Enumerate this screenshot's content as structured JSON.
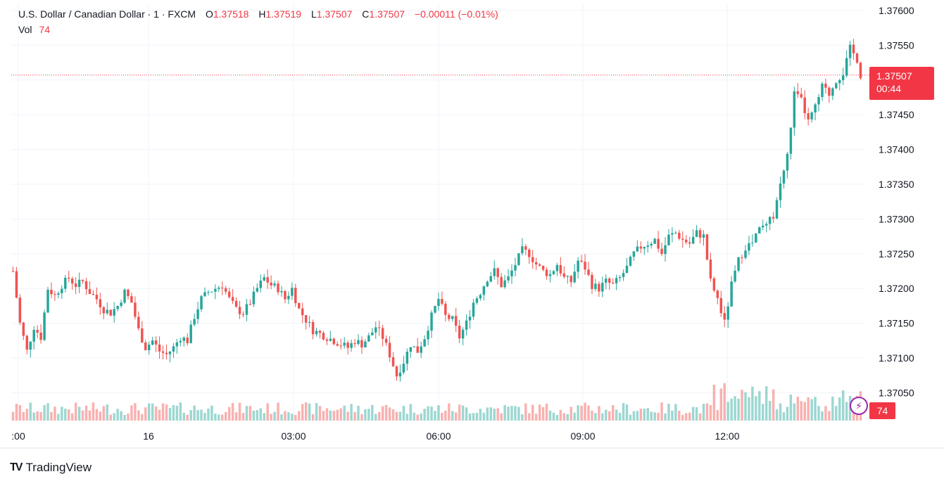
{
  "legend": {
    "symbol": "U.S. Dollar / Canadian Dollar · 1 · FXCM",
    "open_label": "O",
    "open": "1.37518",
    "high_label": "H",
    "high": "1.37519",
    "low_label": "L",
    "low": "1.37507",
    "close_label": "C",
    "close": "1.37507",
    "change": "−0.00011 (−0.01%)",
    "vol_label": "Vol",
    "vol": "74"
  },
  "price_tag": {
    "price": "1.37507",
    "countdown": "00:44"
  },
  "vol_tag": "74",
  "brand": {
    "name": "TradingView"
  },
  "colors": {
    "up": "#26a69a",
    "down": "#ef5350",
    "tag": "#f23645",
    "grid": "#f0f3fa",
    "bolt": "#9c27b0"
  },
  "chart_data": {
    "type": "candlestick",
    "y_ticks": [
      "1.37600",
      "1.37550",
      "1.37500",
      "1.37450",
      "1.37400",
      "1.37350",
      "1.37300",
      "1.37250",
      "1.37200",
      "1.37150",
      "1.37100",
      "1.37050"
    ],
    "ylim": [
      1.3701,
      1.3761
    ],
    "x_ticks": [
      ":00",
      "16",
      "03:00",
      "06:00",
      "09:00",
      "12:00"
    ],
    "current_price": 1.37507,
    "close_path": [
      [
        0,
        1.37225
      ],
      [
        2,
        1.3715
      ],
      [
        4,
        1.3711
      ],
      [
        6,
        1.37145
      ],
      [
        8,
        1.3713
      ],
      [
        10,
        1.372
      ],
      [
        12,
        1.3719
      ],
      [
        14,
        1.37205
      ],
      [
        16,
        1.37215
      ],
      [
        18,
        1.37205
      ],
      [
        20,
        1.3721
      ],
      [
        22,
        1.37195
      ],
      [
        24,
        1.37185
      ],
      [
        26,
        1.3717
      ],
      [
        28,
        1.37165
      ],
      [
        30,
        1.37175
      ],
      [
        32,
        1.37195
      ],
      [
        34,
        1.3718
      ],
      [
        36,
        1.3714
      ],
      [
        38,
        1.37115
      ],
      [
        40,
        1.37125
      ],
      [
        42,
        1.3711
      ],
      [
        44,
        1.37105
      ],
      [
        46,
        1.37115
      ],
      [
        48,
        1.3713
      ],
      [
        50,
        1.37125
      ],
      [
        52,
        1.3716
      ],
      [
        54,
        1.37185
      ],
      [
        56,
        1.37195
      ],
      [
        58,
        1.372
      ],
      [
        60,
        1.37205
      ],
      [
        62,
        1.37185
      ],
      [
        64,
        1.3717
      ],
      [
        66,
        1.37165
      ],
      [
        68,
        1.3718
      ],
      [
        70,
        1.372
      ],
      [
        72,
        1.37215
      ],
      [
        74,
        1.37205
      ],
      [
        76,
        1.372
      ],
      [
        78,
        1.37185
      ],
      [
        80,
        1.372
      ],
      [
        82,
        1.3717
      ],
      [
        84,
        1.37155
      ],
      [
        86,
        1.3714
      ],
      [
        88,
        1.37135
      ],
      [
        90,
        1.3713
      ],
      [
        92,
        1.37125
      ],
      [
        94,
        1.3712
      ],
      [
        96,
        1.37115
      ],
      [
        98,
        1.37125
      ],
      [
        100,
        1.3712
      ],
      [
        102,
        1.3713
      ],
      [
        104,
        1.37145
      ],
      [
        106,
        1.3713
      ],
      [
        108,
        1.37105
      ],
      [
        110,
        1.37075
      ],
      [
        112,
        1.37095
      ],
      [
        114,
        1.3712
      ],
      [
        116,
        1.3711
      ],
      [
        118,
        1.3713
      ],
      [
        120,
        1.3716
      ],
      [
        122,
        1.37185
      ],
      [
        124,
        1.3716
      ],
      [
        126,
        1.37155
      ],
      [
        128,
        1.3713
      ],
      [
        130,
        1.3715
      ],
      [
        132,
        1.3718
      ],
      [
        134,
        1.37195
      ],
      [
        136,
        1.37215
      ],
      [
        138,
        1.37225
      ],
      [
        140,
        1.37205
      ],
      [
        142,
        1.37215
      ],
      [
        144,
        1.37235
      ],
      [
        146,
        1.37255
      ],
      [
        148,
        1.3725
      ],
      [
        150,
        1.37235
      ],
      [
        152,
        1.37225
      ],
      [
        154,
        1.3722
      ],
      [
        156,
        1.37235
      ],
      [
        158,
        1.37215
      ],
      [
        160,
        1.3721
      ],
      [
        162,
        1.3724
      ],
      [
        164,
        1.3723
      ],
      [
        166,
        1.37205
      ],
      [
        168,
        1.372
      ],
      [
        170,
        1.3721
      ],
      [
        172,
        1.37205
      ],
      [
        174,
        1.37215
      ],
      [
        176,
        1.3723
      ],
      [
        178,
        1.3725
      ],
      [
        180,
        1.3726
      ],
      [
        182,
        1.37265
      ],
      [
        184,
        1.3727
      ],
      [
        186,
        1.3725
      ],
      [
        188,
        1.37275
      ],
      [
        190,
        1.3728
      ],
      [
        192,
        1.3727
      ],
      [
        194,
        1.37265
      ],
      [
        196,
        1.3728
      ],
      [
        198,
        1.37275
      ],
      [
        200,
        1.3721
      ],
      [
        202,
        1.37185
      ],
      [
        204,
        1.3715
      ],
      [
        206,
        1.37205
      ],
      [
        208,
        1.3724
      ],
      [
        210,
        1.3726
      ],
      [
        212,
        1.37265
      ],
      [
        214,
        1.37285
      ],
      [
        216,
        1.3729
      ],
      [
        218,
        1.37305
      ],
      [
        220,
        1.3735
      ],
      [
        222,
        1.3739
      ],
      [
        224,
        1.3748
      ],
      [
        226,
        1.3747
      ],
      [
        228,
        1.3744
      ],
      [
        230,
        1.3746
      ],
      [
        232,
        1.3749
      ],
      [
        234,
        1.3748
      ],
      [
        236,
        1.375
      ],
      [
        238,
        1.3751
      ],
      [
        240,
        1.37545
      ],
      [
        242,
        1.3753
      ],
      [
        243,
        1.37507
      ]
    ],
    "volume_range": [
      0,
      100
    ]
  }
}
